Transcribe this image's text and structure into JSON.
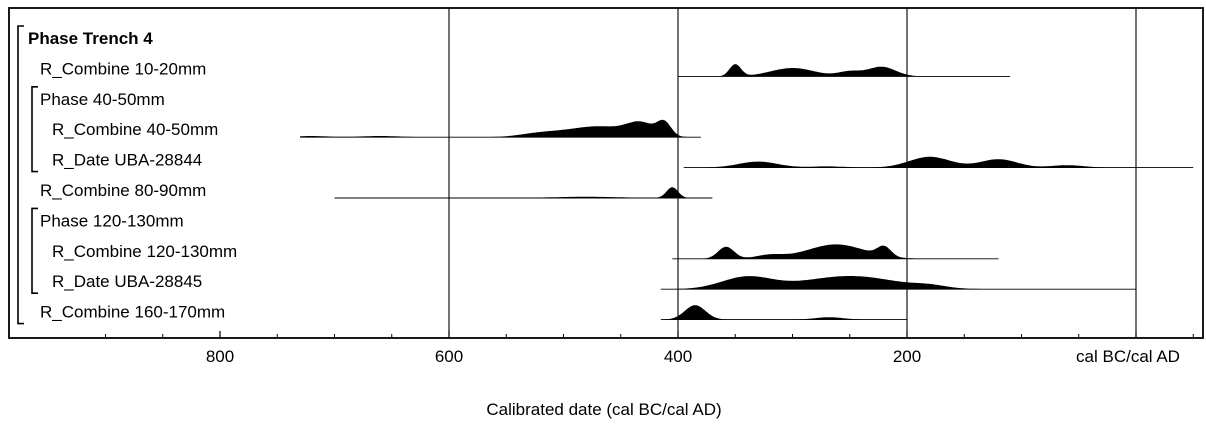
{
  "chart_data": {
    "type": "ridgeline",
    "title": "",
    "xlabel": "Calibrated date (cal BC/cal AD)",
    "ylabel": "",
    "x_unit": "cal BC",
    "xlim": [
      960,
      -50
    ],
    "xticks": [
      {
        "value": 800,
        "label": "800"
      },
      {
        "value": 600,
        "label": "600"
      },
      {
        "value": 400,
        "label": "400"
      },
      {
        "value": 200,
        "label": "200"
      },
      {
        "value": 0,
        "label": "cal BC/cal AD"
      }
    ],
    "vertical_gridlines": [
      600,
      400,
      200,
      0
    ],
    "rows": [
      {
        "label": "Phase Trench 4",
        "bold": true,
        "kind": "phase",
        "level": 0,
        "start": true
      },
      {
        "label": "R_Combine 10-20mm",
        "level": 1,
        "range": [
          400,
          110
        ],
        "peaks": [
          [
            350,
            5,
            10
          ],
          [
            300,
            19,
            7
          ],
          [
            250,
            10,
            4
          ],
          [
            222,
            12,
            8
          ]
        ]
      },
      {
        "label": "Phase 40-50mm",
        "kind": "phase",
        "level": 1,
        "start": true
      },
      {
        "label": "R_Combine 40-50mm",
        "level": 2,
        "range": [
          730,
          380
        ],
        "peaks": [
          [
            720,
            14,
            1
          ],
          [
            660,
            17,
            1
          ],
          [
            520,
            18,
            3
          ],
          [
            470,
            26,
            9
          ],
          [
            432,
            12,
            10
          ],
          [
            412,
            6,
            11
          ]
        ]
      },
      {
        "label": "R_Date UBA-28844",
        "level": 2,
        "range": [
          395,
          -50
        ],
        "end_of": [
          1
        ],
        "peaks": [
          [
            330,
            17,
            5
          ],
          [
            270,
            15,
            1
          ],
          [
            180,
            18,
            9
          ],
          [
            120,
            16,
            7
          ],
          [
            60,
            14,
            2
          ]
        ]
      },
      {
        "label": "R_Combine 80-90mm",
        "level": 1,
        "range": [
          700,
          370
        ],
        "peaks": [
          [
            480,
            30,
            1
          ],
          [
            405,
            5,
            9
          ]
        ]
      },
      {
        "label": "Phase 120-130mm",
        "kind": "phase",
        "level": 1,
        "start": true
      },
      {
        "label": "R_Combine 120-130mm",
        "level": 2,
        "range": [
          405,
          120
        ],
        "peaks": [
          [
            358,
            7,
            10
          ],
          [
            320,
            12,
            3
          ],
          [
            262,
            25,
            12
          ],
          [
            220,
            6,
            8
          ]
        ]
      },
      {
        "label": "R_Date UBA-28845",
        "level": 2,
        "range": [
          415,
          0
        ],
        "end_of": [
          1
        ],
        "peaks": [
          [
            340,
            22,
            10
          ],
          [
            250,
            40,
            11
          ],
          [
            180,
            14,
            2
          ]
        ]
      },
      {
        "label": "R_Combine 160-170mm",
        "level": 1,
        "range": [
          415,
          200
        ],
        "end_of": [
          0
        ],
        "peaks": [
          [
            385,
            9,
            12
          ],
          [
            268,
            12,
            2
          ]
        ]
      }
    ]
  }
}
